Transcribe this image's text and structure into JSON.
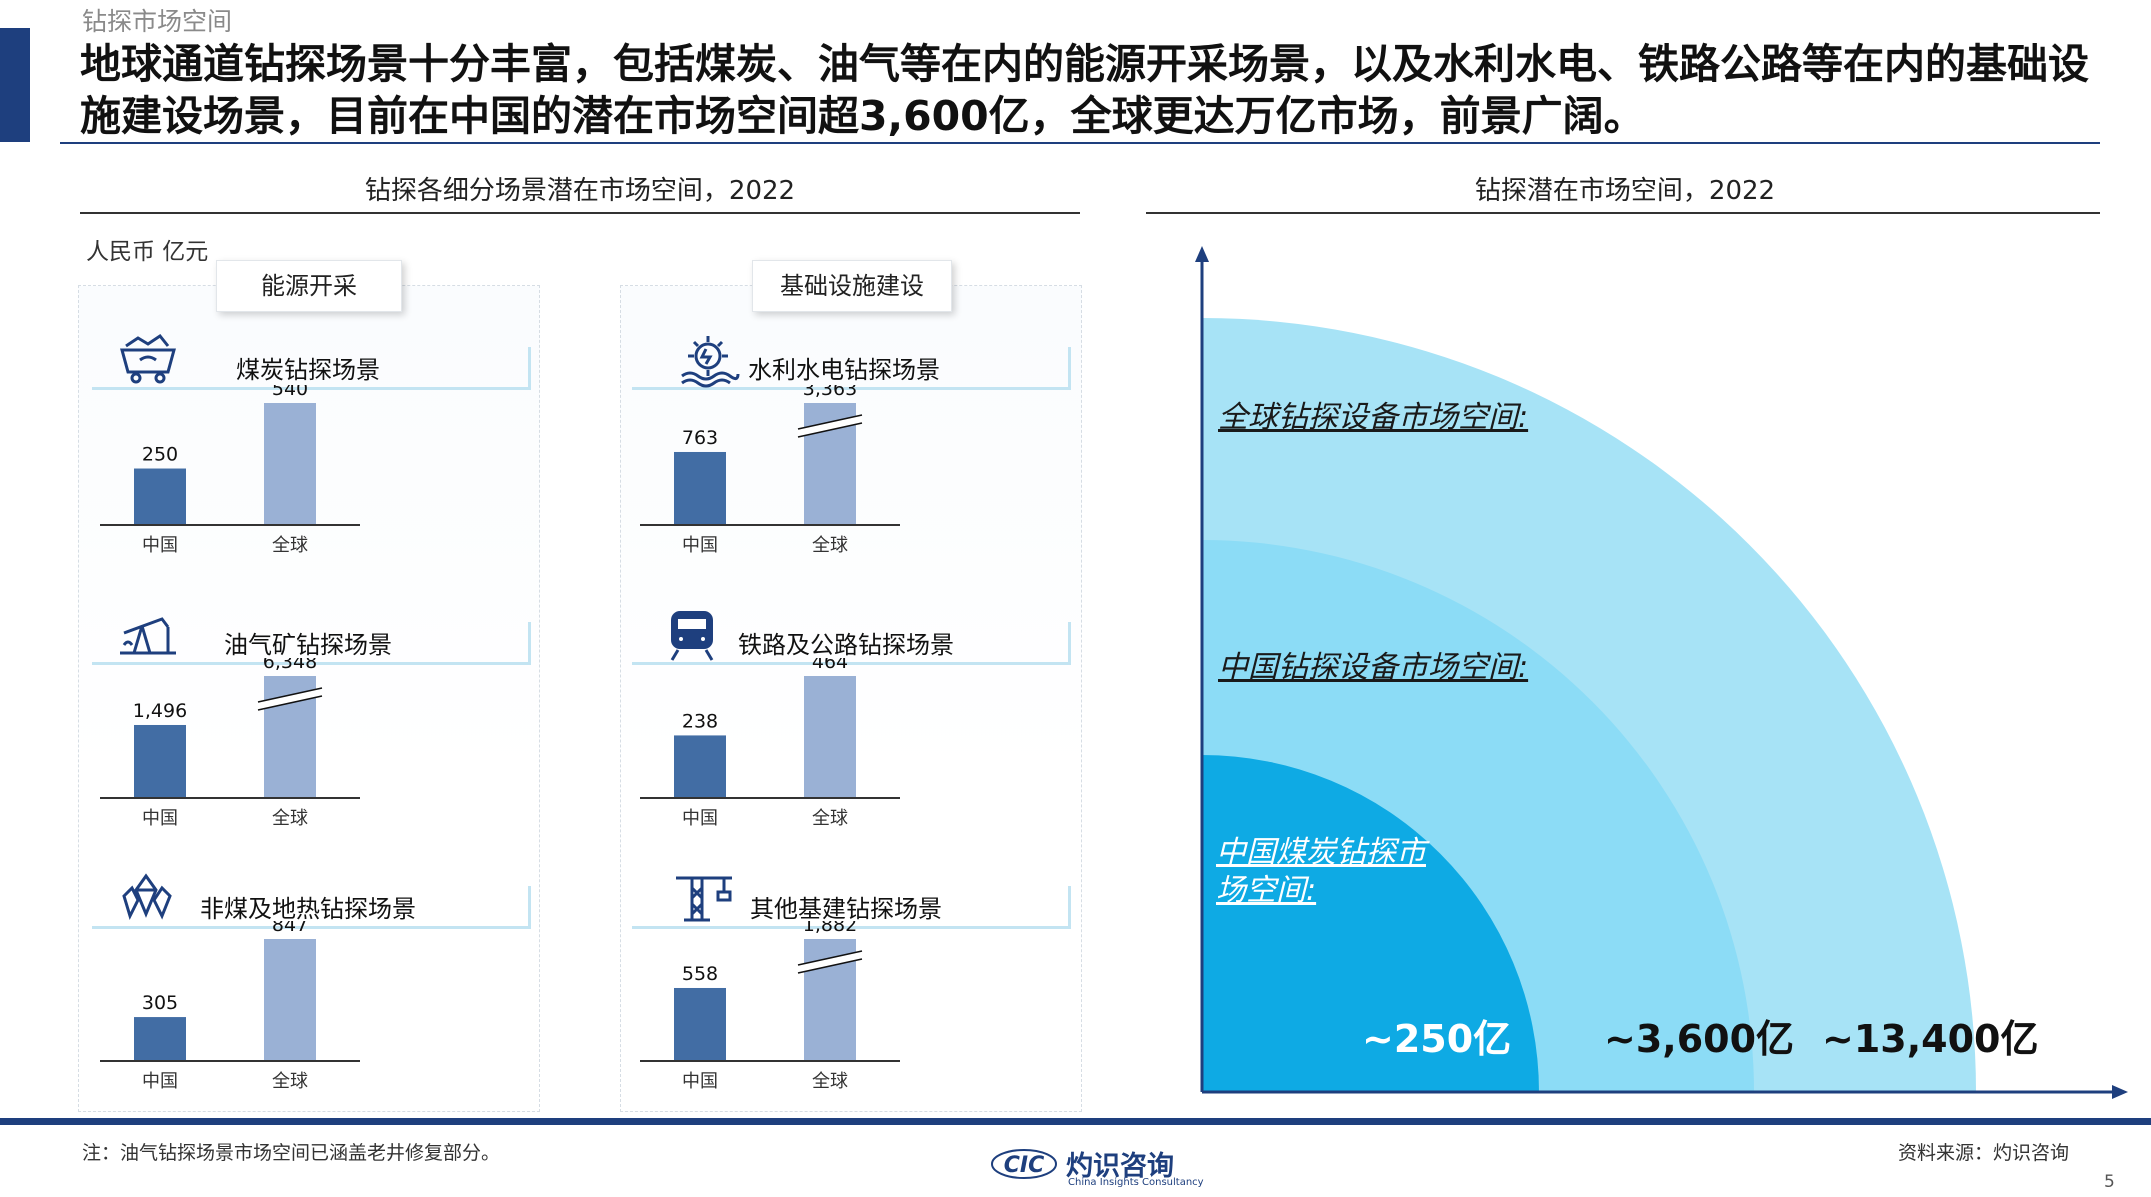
{
  "page": {
    "section_label": "钻探市场空间",
    "headline": "地球通道钻探场景十分丰富，包括煤炭、油气等在内的能源开采场景，以及水利水电、铁路公路等在内的基础设施建设场景，目前在中国的潜在市场空间超3,600亿，全球更达万亿市场，前景广阔。",
    "note": "注：油气钻探场景市场空间已涵盖老井修复部分。",
    "source": "资料来源：灼识咨询",
    "page_number": "5",
    "logo": {
      "abbr": "CIC",
      "name_cn": "灼识咨询",
      "name_en": "China Insights Consultancy"
    }
  },
  "left_panel": {
    "title": "钻探各细分场景潜在市场空间，2022",
    "unit": "人民币 亿元",
    "groups": [
      {
        "label": "能源开采"
      },
      {
        "label": "基础设施建设"
      }
    ]
  },
  "right_panel": {
    "title": "钻探潜在市场空间，2022",
    "rings": [
      {
        "label": "全球钻探设备市场空间:",
        "value_text": "~13,400亿",
        "color": "#a7e3f6"
      },
      {
        "label": "中国钻探设备市场空间:",
        "value_text": "~3,600亿",
        "color": "#8cdcf6"
      },
      {
        "label": "中国煤炭钻探市场空间:",
        "value_text": "~250亿",
        "color": "#0eaae4"
      }
    ]
  },
  "colors": {
    "brand": "#1e3f7e",
    "china_bar": "#426da4",
    "global_bar": "#9ab1d5",
    "banner": "#c3e4f2"
  },
  "chart_data": [
    {
      "type": "bar",
      "title": "煤炭钻探场景",
      "icon": "mine-cart-icon",
      "group": "能源开采",
      "categories": [
        "中国",
        "全球"
      ],
      "values": [
        250,
        540
      ],
      "value_labels": [
        "250",
        "540"
      ],
      "axis_break": false
    },
    {
      "type": "bar",
      "title": "水利水电钻探场景",
      "icon": "hydro-wheel-icon",
      "group": "基础设施建设",
      "categories": [
        "中国",
        "全球"
      ],
      "values": [
        763,
        3363
      ],
      "value_labels": [
        "763",
        "3,363"
      ],
      "axis_break": true
    },
    {
      "type": "bar",
      "title": "油气矿钻探场景",
      "icon": "oil-pump-icon",
      "group": "能源开采",
      "categories": [
        "中国",
        "全球"
      ],
      "values": [
        1496,
        6348
      ],
      "value_labels": [
        "1,496",
        "6,348"
      ],
      "axis_break": true
    },
    {
      "type": "bar",
      "title": "铁路及公路钻探场景",
      "icon": "train-icon",
      "group": "基础设施建设",
      "categories": [
        "中国",
        "全球"
      ],
      "values": [
        238,
        464
      ],
      "value_labels": [
        "238",
        "464"
      ],
      "axis_break": false
    },
    {
      "type": "bar",
      "title": "非煤及地热钻探场景",
      "icon": "crystal-icon",
      "group": "能源开采",
      "categories": [
        "中国",
        "全球"
      ],
      "values": [
        305,
        847
      ],
      "value_labels": [
        "305",
        "847"
      ],
      "axis_break": false
    },
    {
      "type": "bar",
      "title": "其他基建钻探场景",
      "icon": "crane-icon",
      "group": "基础设施建设",
      "categories": [
        "中国",
        "全球"
      ],
      "values": [
        558,
        1882
      ],
      "value_labels": [
        "558",
        "1,882"
      ],
      "axis_break": true
    }
  ]
}
